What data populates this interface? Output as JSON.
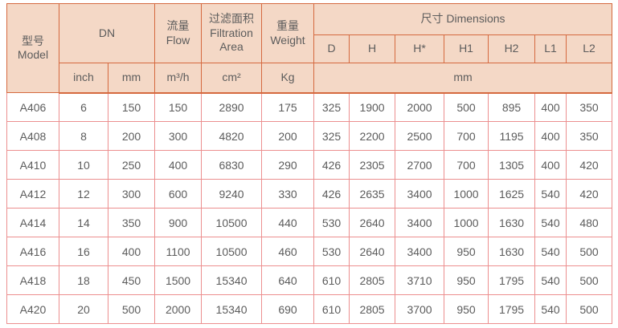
{
  "table": {
    "colors": {
      "header_bg": "#f4d8c6",
      "header_border": "#d5693f",
      "body_border": "#ec8f8f",
      "text": "#5c5c5c"
    },
    "header": {
      "model_zh": "型号",
      "model_en": "Model",
      "dn_label": "DN",
      "dn_inch": "inch",
      "dn_mm": "mm",
      "flow_zh": "流量",
      "flow_en": "Flow",
      "flow_unit": "m³/h",
      "filtration_zh": "过滤面积",
      "filtration_en": "Filtration Area",
      "filtration_unit": "cm²",
      "weight_zh": "重量",
      "weight_en": "Weight",
      "weight_unit": "Kg",
      "dimensions_label": "尺寸 Dimensions",
      "dimensions_cols": [
        "D",
        "H",
        "H*",
        "H1",
        "H2",
        "L1",
        "L2"
      ],
      "dimensions_unit": "mm"
    },
    "column_keys": [
      "model",
      "dn_inch",
      "dn_mm",
      "flow",
      "filtration_area",
      "weight",
      "D",
      "H",
      "H*",
      "H1",
      "H2",
      "L1",
      "L2"
    ],
    "rows": [
      [
        "A406",
        "6",
        "150",
        "150",
        "2890",
        "175",
        "325",
        "1900",
        "2000",
        "500",
        "895",
        "400",
        "350"
      ],
      [
        "A408",
        "8",
        "200",
        "300",
        "4820",
        "200",
        "325",
        "2200",
        "2500",
        "700",
        "1195",
        "400",
        "350"
      ],
      [
        "A410",
        "10",
        "250",
        "400",
        "6830",
        "290",
        "426",
        "2305",
        "2700",
        "700",
        "1305",
        "400",
        "420"
      ],
      [
        "A412",
        "12",
        "300",
        "600",
        "9240",
        "330",
        "426",
        "2635",
        "3400",
        "1000",
        "1625",
        "540",
        "420"
      ],
      [
        "A414",
        "14",
        "350",
        "900",
        "10500",
        "440",
        "530",
        "2640",
        "3400",
        "1000",
        "1630",
        "540",
        "480"
      ],
      [
        "A416",
        "16",
        "400",
        "1100",
        "10500",
        "460",
        "530",
        "2640",
        "3400",
        "950",
        "1630",
        "540",
        "500"
      ],
      [
        "A418",
        "18",
        "450",
        "1500",
        "15340",
        "640",
        "610",
        "2805",
        "3710",
        "950",
        "1795",
        "540",
        "500"
      ],
      [
        "A420",
        "20",
        "500",
        "2000",
        "15340",
        "690",
        "610",
        "2805",
        "3700",
        "950",
        "1795",
        "540",
        "500"
      ]
    ]
  }
}
